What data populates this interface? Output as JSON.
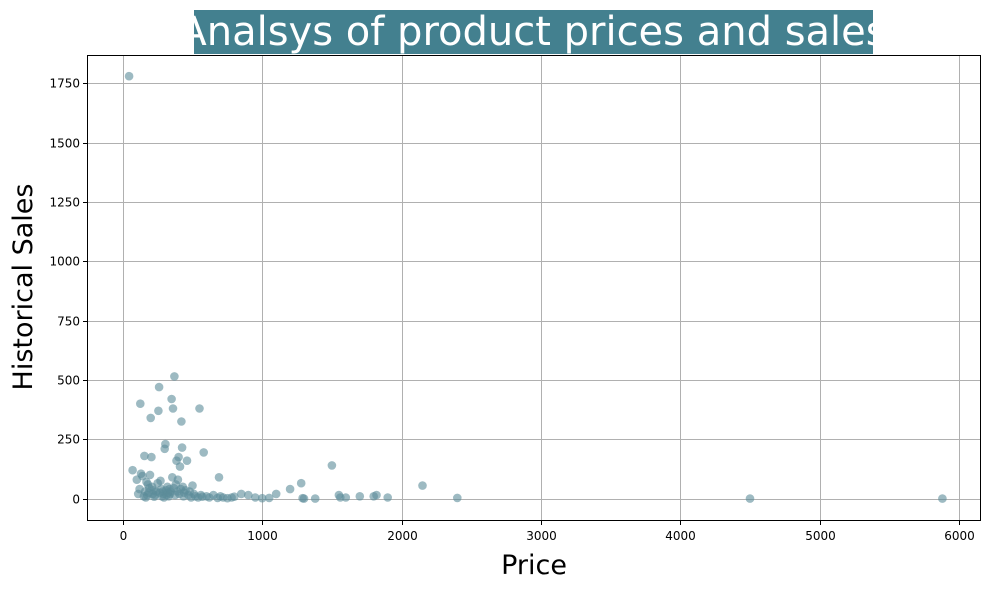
{
  "chart_data": {
    "type": "scatter",
    "title": "Analsys of product prices and sales",
    "xlabel": "Price",
    "ylabel": "Historical Sales",
    "xlim": [
      -250,
      6150
    ],
    "ylim": [
      -90,
      1865
    ],
    "xticks": [
      0,
      1000,
      2000,
      3000,
      4000,
      5000,
      6000
    ],
    "yticks": [
      0,
      250,
      500,
      750,
      1000,
      1250,
      1500,
      1750
    ],
    "grid": true,
    "legend": "none",
    "colors": {
      "marker": "#5b8c99",
      "title_bg": "#43808f",
      "title_text": "#ffffff",
      "grid": "#b0b0b0"
    },
    "marker_opacity": 0.6,
    "points": [
      [
        45,
        1780
      ],
      [
        70,
        120
      ],
      [
        100,
        80
      ],
      [
        110,
        20
      ],
      [
        120,
        40
      ],
      [
        125,
        400
      ],
      [
        130,
        105
      ],
      [
        140,
        95
      ],
      [
        150,
        10
      ],
      [
        155,
        180
      ],
      [
        160,
        30
      ],
      [
        165,
        5
      ],
      [
        170,
        70
      ],
      [
        175,
        15
      ],
      [
        180,
        60
      ],
      [
        185,
        25
      ],
      [
        190,
        45
      ],
      [
        195,
        100
      ],
      [
        200,
        340
      ],
      [
        205,
        175
      ],
      [
        210,
        50
      ],
      [
        215,
        20
      ],
      [
        220,
        35
      ],
      [
        225,
        8
      ],
      [
        230,
        15
      ],
      [
        240,
        30
      ],
      [
        250,
        65
      ],
      [
        255,
        370
      ],
      [
        260,
        470
      ],
      [
        265,
        25
      ],
      [
        270,
        75
      ],
      [
        275,
        40
      ],
      [
        280,
        10
      ],
      [
        285,
        30
      ],
      [
        290,
        20
      ],
      [
        295,
        5
      ],
      [
        300,
        210
      ],
      [
        305,
        230
      ],
      [
        310,
        35
      ],
      [
        315,
        15
      ],
      [
        320,
        50
      ],
      [
        325,
        25
      ],
      [
        330,
        10
      ],
      [
        335,
        40
      ],
      [
        340,
        20
      ],
      [
        345,
        30
      ],
      [
        350,
        420
      ],
      [
        355,
        90
      ],
      [
        360,
        380
      ],
      [
        365,
        45
      ],
      [
        370,
        515
      ],
      [
        375,
        15
      ],
      [
        380,
        60
      ],
      [
        385,
        160
      ],
      [
        390,
        30
      ],
      [
        395,
        80
      ],
      [
        400,
        175
      ],
      [
        405,
        20
      ],
      [
        410,
        135
      ],
      [
        415,
        40
      ],
      [
        420,
        325
      ],
      [
        425,
        215
      ],
      [
        430,
        50
      ],
      [
        435,
        10
      ],
      [
        440,
        25
      ],
      [
        450,
        35
      ],
      [
        460,
        160
      ],
      [
        470,
        15
      ],
      [
        480,
        30
      ],
      [
        490,
        5
      ],
      [
        500,
        55
      ],
      [
        510,
        20
      ],
      [
        520,
        10
      ],
      [
        540,
        5
      ],
      [
        550,
        380
      ],
      [
        560,
        15
      ],
      [
        570,
        8
      ],
      [
        580,
        195
      ],
      [
        600,
        10
      ],
      [
        620,
        5
      ],
      [
        650,
        15
      ],
      [
        680,
        3
      ],
      [
        690,
        90
      ],
      [
        700,
        10
      ],
      [
        720,
        5
      ],
      [
        750,
        2
      ],
      [
        780,
        5
      ],
      [
        800,
        8
      ],
      [
        850,
        20
      ],
      [
        900,
        15
      ],
      [
        950,
        5
      ],
      [
        1000,
        2
      ],
      [
        1050,
        3
      ],
      [
        1100,
        20
      ],
      [
        1200,
        40
      ],
      [
        1280,
        65
      ],
      [
        1290,
        2
      ],
      [
        1300,
        0
      ],
      [
        1380,
        0
      ],
      [
        1500,
        140
      ],
      [
        1550,
        15
      ],
      [
        1560,
        5
      ],
      [
        1600,
        5
      ],
      [
        1700,
        10
      ],
      [
        1800,
        10
      ],
      [
        1820,
        15
      ],
      [
        1900,
        5
      ],
      [
        2150,
        55
      ],
      [
        2400,
        3
      ],
      [
        4500,
        0
      ],
      [
        5880,
        0
      ]
    ]
  }
}
